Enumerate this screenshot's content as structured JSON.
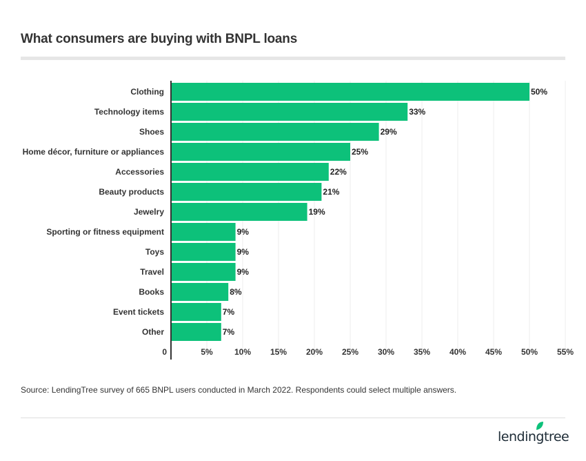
{
  "chart_data": {
    "type": "bar",
    "orientation": "horizontal",
    "title": "What consumers are buying with BNPL loans",
    "categories": [
      "Clothing",
      "Technology items",
      "Shoes",
      "Home décor, furniture or appliances",
      "Accessories",
      "Beauty products",
      "Jewelry",
      "Sporting or fitness equipment",
      "Toys",
      "Travel",
      "Books",
      "Event tickets",
      "Other"
    ],
    "values": [
      50,
      33,
      29,
      25,
      22,
      21,
      19,
      9,
      9,
      9,
      8,
      7,
      7
    ],
    "data_labels": [
      "50%",
      "33%",
      "29%",
      "25%",
      "22%",
      "21%",
      "19%",
      "9%",
      "9%",
      "9%",
      "8%",
      "7%",
      "7%"
    ],
    "xlim": [
      0,
      55
    ],
    "x_ticks": [
      0,
      5,
      10,
      15,
      20,
      25,
      30,
      35,
      40,
      45,
      50,
      55
    ],
    "x_tick_labels": [
      "0",
      "5%",
      "10%",
      "15%",
      "20%",
      "25%",
      "30%",
      "35%",
      "40%",
      "45%",
      "50%",
      "55%"
    ],
    "grid": true,
    "bar_color": "#0dc17a"
  },
  "source": "Source: LendingTree survey of 665 BNPL users conducted in March 2022. Respondents could select multiple answers.",
  "logo": {
    "text": "lendingtree",
    "leaf_color": "#0dc17a"
  }
}
